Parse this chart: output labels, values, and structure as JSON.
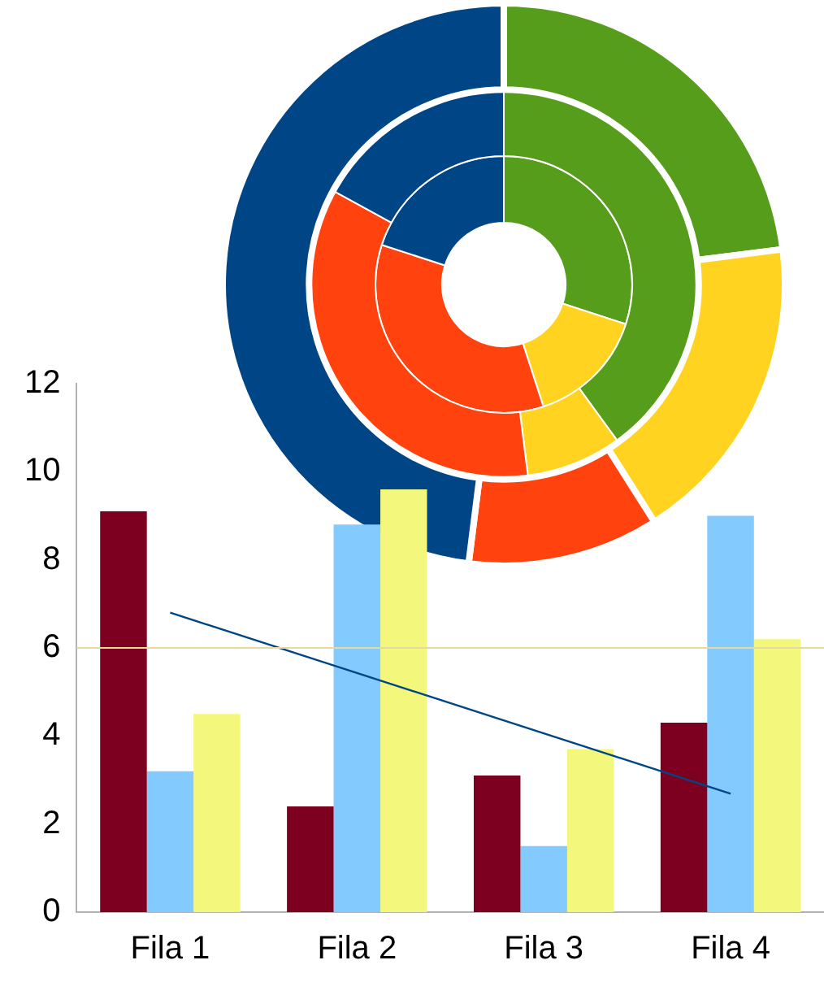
{
  "chart_data": [
    {
      "type": "donut",
      "categories": [
        null,
        null,
        null,
        null
      ],
      "series": [
        {
          "values": [
            23,
            18,
            11,
            48
          ],
          "colors": [
            "#579d1c",
            "#ffd320",
            "#ff420e",
            "#004586"
          ]
        },
        {
          "values": [
            40,
            8,
            35,
            17
          ],
          "colors": [
            "#579d1c",
            "#ffd320",
            "#ff420e",
            "#004586"
          ]
        },
        {
          "values": [
            30,
            15,
            35,
            20
          ],
          "colors": [
            "#579d1c",
            "#ffd320",
            "#ff420e",
            "#004586"
          ]
        }
      ],
      "legend": false
    },
    {
      "type": "bar",
      "categories": [
        "Fila 1",
        "Fila 2",
        "Fila 3",
        "Fila 4"
      ],
      "series": [
        {
          "color": "#7e0021",
          "values": [
            9.1,
            2.4,
            3.1,
            4.3
          ]
        },
        {
          "color": "#83caff",
          "values": [
            3.2,
            8.8,
            1.5,
            9.0
          ]
        },
        {
          "color": "#f3f77c",
          "values": [
            4.5,
            9.6,
            3.7,
            6.2
          ]
        },
        {
          "type": "line",
          "color": "#004586",
          "values": [
            6.8,
            5.43,
            4.06,
            2.69
          ]
        }
      ],
      "ylim": [
        0,
        12
      ],
      "yticks": [
        0,
        2,
        4,
        6,
        8,
        10,
        12
      ],
      "ref_lines": [
        {
          "axis": "y",
          "value": 6,
          "color": "#e6d9a0"
        }
      ],
      "grid": false,
      "legend": false
    }
  ]
}
